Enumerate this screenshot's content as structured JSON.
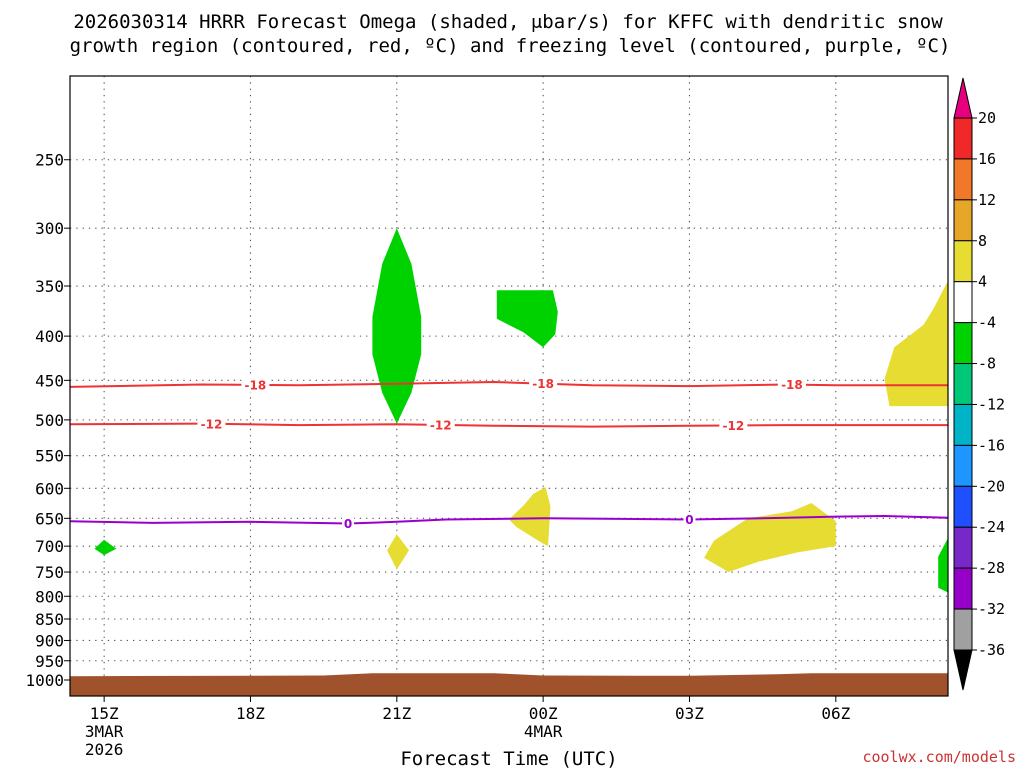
{
  "chart_data": {
    "type": "time-height",
    "title_line1": "2026030314 HRRR Forecast Omega (shaded, μbar/s) for KFFC with dendritic snow",
    "title_line2": "growth region (contoured, red, ºC) and freezing level (contoured, purple, ºC)",
    "xlabel": "Forecast Time (UTC)",
    "credit": "coolwx.com/models",
    "x_hours": [
      14.3,
      32.3
    ],
    "y_pressure": [
      1000,
      200
    ],
    "y_ticks": [
      250,
      300,
      350,
      400,
      450,
      500,
      550,
      600,
      650,
      700,
      750,
      800,
      850,
      900,
      950,
      1000
    ],
    "x_ticks": [
      {
        "hour": 15,
        "label": "15Z",
        "sub1": "3MAR",
        "sub2": "2026"
      },
      {
        "hour": 18,
        "label": "18Z",
        "sub1": "",
        "sub2": ""
      },
      {
        "hour": 21,
        "label": "21Z",
        "sub1": "",
        "sub2": ""
      },
      {
        "hour": 24,
        "label": "00Z",
        "sub1": "4MAR",
        "sub2": ""
      },
      {
        "hour": 27,
        "label": "03Z",
        "sub1": "",
        "sub2": ""
      },
      {
        "hour": 30,
        "label": "06Z",
        "sub1": "",
        "sub2": ""
      }
    ],
    "contours": [
      {
        "name": "dgz-minus18",
        "label": "-18",
        "color": "#ee3333",
        "points": [
          [
            14.3,
            458
          ],
          [
            17,
            455
          ],
          [
            19,
            456
          ],
          [
            21,
            454
          ],
          [
            23,
            452
          ],
          [
            25,
            456
          ],
          [
            27,
            457
          ],
          [
            29,
            455
          ],
          [
            30,
            456
          ],
          [
            32.3,
            456
          ]
        ],
        "label_hours": [
          18.1,
          24.0,
          29.1
        ]
      },
      {
        "name": "dgz-minus12",
        "label": "-12",
        "color": "#ee3333",
        "points": [
          [
            14.3,
            506
          ],
          [
            17,
            505
          ],
          [
            19,
            507
          ],
          [
            21,
            506
          ],
          [
            23,
            508
          ],
          [
            25,
            509
          ],
          [
            27,
            508
          ],
          [
            29,
            507
          ],
          [
            32.3,
            507
          ]
        ],
        "label_hours": [
          17.2,
          21.9,
          27.9
        ]
      },
      {
        "name": "freezing-level",
        "label": "0",
        "color": "#9900cc",
        "points": [
          [
            14.3,
            655
          ],
          [
            16,
            658
          ],
          [
            18,
            656
          ],
          [
            20,
            659
          ],
          [
            21,
            656
          ],
          [
            22,
            652
          ],
          [
            24,
            650
          ],
          [
            27,
            652
          ],
          [
            29,
            649
          ],
          [
            30,
            647
          ],
          [
            31,
            646
          ],
          [
            32.3,
            649
          ]
        ],
        "label_hours": [
          20.0,
          27.0
        ]
      }
    ],
    "shaded": [
      {
        "name": "green-core-21z",
        "color": "#00d200",
        "points": [
          [
            21.0,
            300
          ],
          [
            21.3,
            330
          ],
          [
            21.5,
            380
          ],
          [
            21.5,
            420
          ],
          [
            21.3,
            465
          ],
          [
            21.0,
            505
          ],
          [
            20.7,
            465
          ],
          [
            20.5,
            420
          ],
          [
            20.5,
            380
          ],
          [
            20.7,
            330
          ]
        ]
      },
      {
        "name": "green-patch-00z",
        "color": "#00d200",
        "points": [
          [
            23.05,
            354
          ],
          [
            24.2,
            354
          ],
          [
            24.3,
            375
          ],
          [
            24.25,
            398
          ],
          [
            24.0,
            412
          ],
          [
            23.6,
            396
          ],
          [
            23.05,
            382
          ]
        ]
      },
      {
        "name": "green-dot-15z",
        "color": "#00d200",
        "points": [
          [
            15.0,
            688
          ],
          [
            15.25,
            705
          ],
          [
            15.0,
            717
          ],
          [
            14.8,
            705
          ]
        ]
      },
      {
        "name": "green-edge-08z",
        "color": "#00d200",
        "points": [
          [
            32.3,
            685
          ],
          [
            32.3,
            792
          ],
          [
            32.1,
            782
          ],
          [
            32.1,
            720
          ]
        ]
      },
      {
        "name": "yellow-dot-21z",
        "color": "#e6dc32",
        "points": [
          [
            21.0,
            678
          ],
          [
            21.25,
            708
          ],
          [
            21.0,
            745
          ],
          [
            20.8,
            708
          ]
        ]
      },
      {
        "name": "yellow-patch-00z",
        "color": "#e6dc32",
        "points": [
          [
            24.05,
            598
          ],
          [
            24.15,
            630
          ],
          [
            24.1,
            700
          ],
          [
            23.9,
            690
          ],
          [
            23.45,
            665
          ],
          [
            23.3,
            652
          ],
          [
            23.6,
            628
          ],
          [
            23.8,
            609
          ]
        ]
      },
      {
        "name": "yellow-patch-04z",
        "color": "#e6dc32",
        "points": [
          [
            28.2,
            650
          ],
          [
            29.1,
            638
          ],
          [
            29.5,
            624
          ],
          [
            30.0,
            655
          ],
          [
            30.0,
            700
          ],
          [
            29.2,
            712
          ],
          [
            28.4,
            730
          ],
          [
            27.8,
            750
          ],
          [
            27.3,
            722
          ],
          [
            27.5,
            690
          ]
        ]
      },
      {
        "name": "yellow-patch-08z",
        "color": "#e6dc32",
        "points": [
          [
            32.3,
            345
          ],
          [
            32.3,
            482
          ],
          [
            31.1,
            482
          ],
          [
            31.0,
            448
          ],
          [
            31.2,
            412
          ],
          [
            31.8,
            388
          ],
          [
            32.0,
            372
          ]
        ]
      }
    ],
    "terrain": {
      "color": "#a0522d",
      "top": [
        [
          14.3,
          990
        ],
        [
          19.5,
          988
        ],
        [
          20.5,
          982
        ],
        [
          23.0,
          982
        ],
        [
          24.0,
          988
        ],
        [
          27.0,
          989
        ],
        [
          28.8,
          985
        ],
        [
          29.5,
          982
        ],
        [
          32.3,
          982
        ]
      ]
    },
    "colorbar": {
      "labels": [
        "20",
        "16",
        "12",
        "8",
        "4",
        "-4",
        "-8",
        "-12",
        "-16",
        "-20",
        "-24",
        "-28",
        "-32",
        "-36"
      ],
      "colors": [
        "#f02828",
        "#f07828",
        "#e6a628",
        "#e6dc32",
        "#ffffff",
        "#00d200",
        "#00c878",
        "#00b4c8",
        "#1e96ff",
        "#1e50ff",
        "#7828c8",
        "#9600c8",
        "#a0a0a0"
      ],
      "top_arrow_color": "#e6007e",
      "bottom_arrow_color": "#000000"
    }
  }
}
